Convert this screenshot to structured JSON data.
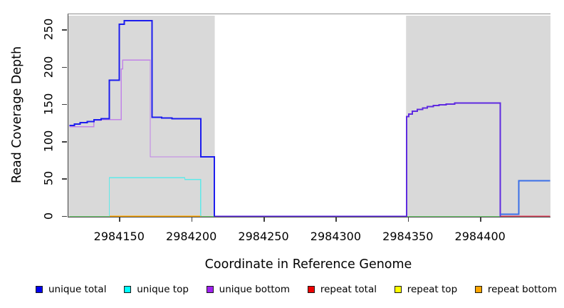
{
  "chart_data": {
    "type": "line",
    "title": "",
    "xlabel": "Coordinate in Reference Genome",
    "ylabel": "Read Coverage Depth",
    "xlim": [
      2984114.6,
      2984448
    ],
    "ylim": [
      0,
      270.9
    ],
    "x_ticks": [
      2984150,
      2984200,
      2984250,
      2984300,
      2984350,
      2984400
    ],
    "y_ticks": [
      0,
      50,
      100,
      150,
      200,
      250
    ],
    "grid": false,
    "panel_color": "#d9d9d9",
    "shaded_regions": [
      {
        "name": "mapped-block-left",
        "x0": 2984114.6,
        "x1": 2984215.5
      },
      {
        "name": "mapped-block-right",
        "x0": 2984348.5,
        "x1": 2984448
      }
    ],
    "series": [
      {
        "name": "zero-coverage-overlap",
        "color": "#7cdc7c",
        "width": 1.5,
        "segments": [
          [
            [
              2984115,
              0
            ],
            [
              2984142.7,
              0
            ]
          ],
          [
            [
              2984206,
              0
            ],
            [
              2984215.5,
              0
            ]
          ],
          [
            [
              2984348.5,
              0
            ],
            [
              2984413.5,
              0
            ]
          ]
        ]
      },
      {
        "name": "repeat bottom",
        "color": "#ffa500",
        "width": 2,
        "segments": [
          [
            [
              2984142.7,
              0
            ],
            [
              2984206.5,
              0
            ]
          ]
        ]
      },
      {
        "name": "repeat total",
        "color": "#e0455e",
        "width": 1.6,
        "segments": [
          [
            [
              2984413.5,
              0
            ],
            [
              2984448,
              0
            ]
          ]
        ]
      },
      {
        "name": "unique top",
        "color": "#5fe9e9",
        "width": 1.4,
        "segments": [
          [
            [
              2984142.7,
              0
            ],
            [
              2984142.7,
              52
            ],
            [
              2984195,
              52
            ],
            [
              2984195,
              49.5
            ],
            [
              2984206,
              49.5
            ],
            [
              2984206,
              0
            ]
          ]
        ]
      },
      {
        "name": "unique bottom",
        "color": "#c183e8",
        "width": 1.3,
        "segments": [
          [
            [
              2984115,
              120.5
            ],
            [
              2984132,
              120.5
            ],
            [
              2984132,
              129
            ],
            [
              2984137,
              129
            ],
            [
              2984137,
              130
            ],
            [
              2984151,
              130
            ],
            [
              2984151,
              198
            ],
            [
              2984152,
              198
            ],
            [
              2984152,
              210
            ],
            [
              2984171,
              210
            ],
            [
              2984171,
              80
            ],
            [
              2984215.5,
              80
            ],
            [
              2984215.5,
              0
            ]
          ]
        ]
      },
      {
        "name": "unique-total-bottom-overlap",
        "color": "#5f2be0",
        "width": 2,
        "segments": [
          [
            [
              2984215.5,
              0
            ],
            [
              2984348.5,
              0
            ],
            [
              2984348.5,
              134
            ],
            [
              2984350,
              134
            ],
            [
              2984350,
              137.5
            ],
            [
              2984352.5,
              137.5
            ],
            [
              2984352.5,
              141
            ],
            [
              2984356,
              141
            ],
            [
              2984356,
              143.5
            ],
            [
              2984359.8,
              143.5
            ],
            [
              2984359.8,
              145.5
            ],
            [
              2984363,
              145.5
            ],
            [
              2984363,
              147.5
            ],
            [
              2984367,
              147.5
            ],
            [
              2984367,
              149
            ],
            [
              2984371,
              149
            ],
            [
              2984371,
              150
            ],
            [
              2984376,
              150
            ],
            [
              2984376,
              151
            ],
            [
              2984382,
              151
            ],
            [
              2984382,
              152
            ],
            [
              2984413.5,
              152
            ],
            [
              2984413.5,
              0
            ]
          ]
        ]
      },
      {
        "name": "unique total",
        "color": "#1d1dee",
        "width": 2,
        "segments": [
          [
            [
              2984115,
              122
            ],
            [
              2984118.5,
              122
            ],
            [
              2984118.5,
              124
            ],
            [
              2984122.5,
              124
            ],
            [
              2984122.5,
              126
            ],
            [
              2984127.5,
              126
            ],
            [
              2984127.5,
              127.5
            ],
            [
              2984132,
              127.5
            ],
            [
              2984132,
              129.5
            ],
            [
              2984137,
              129.5
            ],
            [
              2984137,
              131
            ],
            [
              2984142.7,
              131
            ],
            [
              2984142.7,
              183
            ],
            [
              2984149.5,
              183
            ],
            [
              2984149.5,
              258
            ],
            [
              2984153,
              258
            ],
            [
              2984153,
              263
            ],
            [
              2984172.2,
              263
            ],
            [
              2984172.2,
              133
            ],
            [
              2984179,
              133
            ],
            [
              2984179,
              132
            ],
            [
              2984186,
              132
            ],
            [
              2984186,
              131
            ],
            [
              2984206.1,
              131
            ],
            [
              2984206.1,
              80
            ],
            [
              2984215.5,
              80
            ],
            [
              2984215.5,
              0
            ]
          ]
        ]
      },
      {
        "name": "unique-total-right",
        "color": "#3a6fe8",
        "width": 2,
        "segments": [
          [
            [
              2984413.5,
              3
            ],
            [
              2984426.3,
              3
            ],
            [
              2984426.3,
              48
            ],
            [
              2984448,
              48
            ]
          ]
        ]
      }
    ]
  },
  "axes": {
    "x_title": "Coordinate in Reference Genome",
    "y_title": "Read Coverage Depth"
  },
  "legend": {
    "items": [
      {
        "label": "unique total",
        "color": "#0000ee"
      },
      {
        "label": "unique top",
        "color": "#00ffff"
      },
      {
        "label": "unique bottom",
        "color": "#a020f0"
      },
      {
        "label": "repeat total",
        "color": "#ee0000"
      },
      {
        "label": "repeat top",
        "color": "#ffff00"
      },
      {
        "label": "repeat bottom",
        "color": "#ffa500"
      }
    ]
  }
}
